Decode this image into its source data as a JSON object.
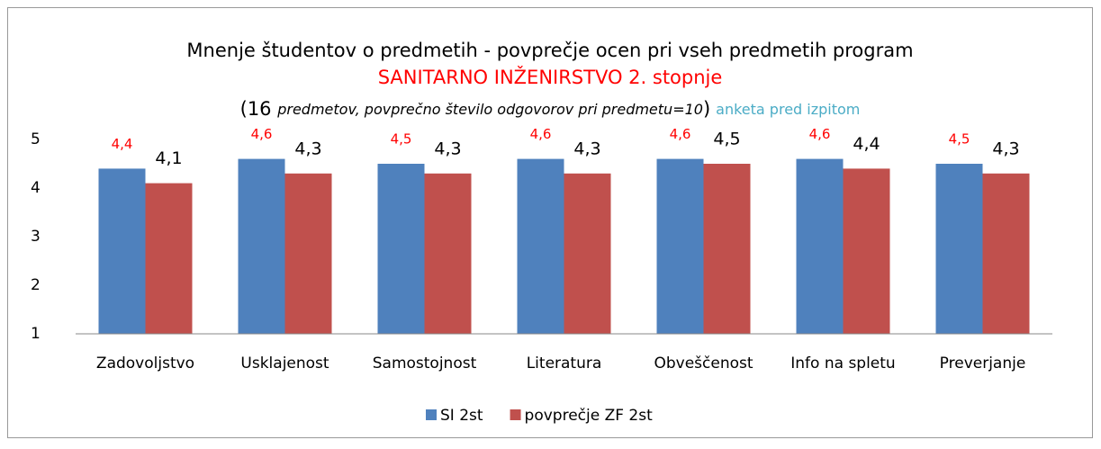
{
  "chart_data": {
    "type": "bar",
    "title": "Mnenje študentov o predmetih - povprečje ocen pri vseh predmetih program",
    "program": "SANITARNO INŽENIRSTVO 2. stopnje",
    "subtitle_parts": [
      "(16 ",
      "predmetov, povprečno število odgovorov pri predmetu=10",
      ")"
    ],
    "note": "anketa pred izpitom",
    "categories": [
      "Zadovoljstvo",
      "Usklajenost",
      "Samostojnost",
      "Literatura",
      "Obveščenost",
      "Info na spletu",
      "Preverjanje"
    ],
    "series": [
      {
        "name": "SI 2st",
        "color": "#4f81bd",
        "values": [
          4.4,
          4.6,
          4.5,
          4.6,
          4.6,
          4.6,
          4.5
        ],
        "value_labels": [
          "4,4",
          "4,6",
          "4,5",
          "4,6",
          "4,6",
          "4,6",
          "4,5"
        ]
      },
      {
        "name": "povprečje ZF 2st",
        "color": "#c0504d",
        "values": [
          4.1,
          4.3,
          4.3,
          4.3,
          4.5,
          4.4,
          4.3
        ],
        "value_labels": [
          "4,1",
          "4,3",
          "4,3",
          "4,3",
          "4,5",
          "4,4",
          "4,3"
        ]
      }
    ],
    "ylim": [
      1,
      5
    ],
    "yticks": [
      1,
      2,
      3,
      4,
      5
    ],
    "grid": false,
    "legend": "bottom"
  }
}
